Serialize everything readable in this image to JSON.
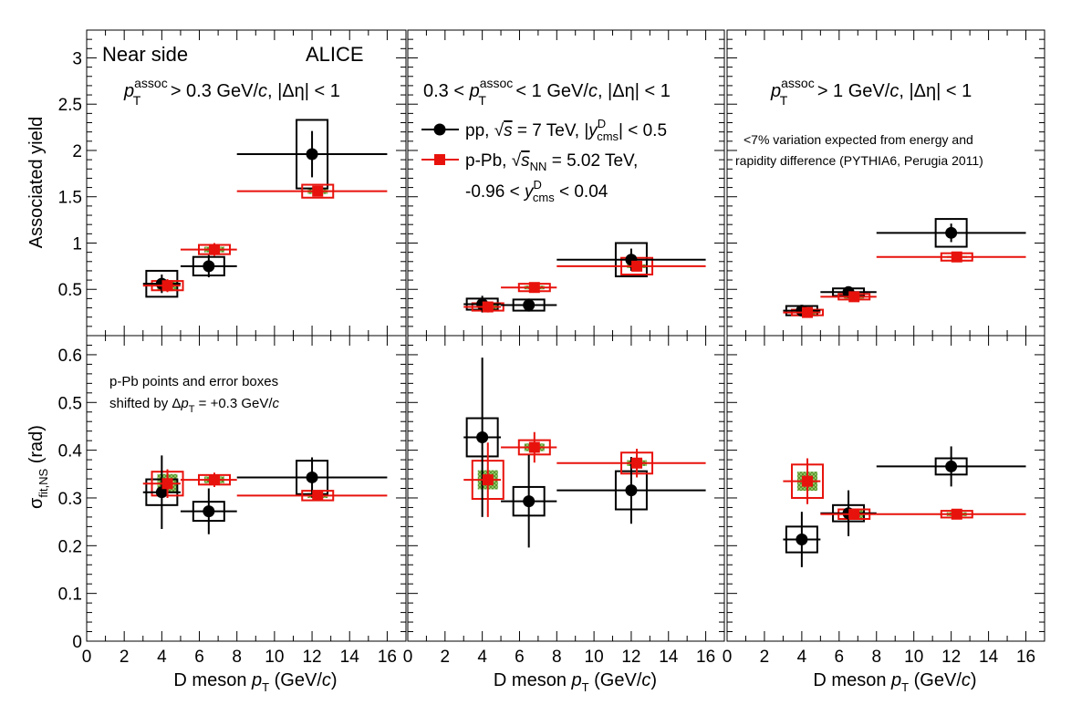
{
  "colors": {
    "pp": "#000000",
    "ppb": "#e8120c",
    "ppb_fill": "#e8120c",
    "band": "#5a9e2a",
    "frame": "#000000"
  },
  "labels": {
    "near_side": "Near side",
    "alice": "ALICE",
    "top_ylabel": "Associated yield",
    "bottom_ylabel_main": "σ",
    "bottom_ylabel_sub": "fit,NS",
    "bottom_ylabel_unit": " (rad)",
    "xlabel_pre": "D meson ",
    "xlabel_p": "p",
    "xlabel_sub": "T",
    "xlabel_post": " (GeV/",
    "xlabel_c": "c",
    "xlabel_close": ")",
    "ptassoc": [
      {
        "pre": "",
        "post": " > 0.3 GeV/",
        "tail": ", |Δη| < 1"
      },
      {
        "pre": "0.3 < ",
        "post": " < 1 GeV/",
        "tail": ", |Δη| < 1"
      },
      {
        "pre": "",
        "post": " > 1 GeV/",
        "tail": ", |Δη| < 1"
      }
    ],
    "assoc_sup": "assoc",
    "legend_pp": {
      "a": "pp, ",
      "sqrt": "s",
      "b": " = 7 TeV, |",
      "y": "y",
      "sup": "D",
      "sub": "cms",
      "c": "| < 0.5"
    },
    "legend_ppb": {
      "a": "p-Pb, ",
      "sqrt": "s",
      "sqrt_sub": "NN",
      "b": " = 5.02 TeV,"
    },
    "legend_ppb2": {
      "a": "-0.96 < ",
      "y": "y",
      "sup": "D",
      "sub": "cms",
      "b": " < 0.04"
    },
    "variation_1": "<7% variation expected from energy and",
    "variation_2": "rapidity difference (PYTHIA6, Perugia 2011)",
    "shift_1": "p-Pb points and error boxes",
    "shift_2_pre": "shifted by Δ",
    "shift_2_p": "p",
    "shift_2_sub": "T",
    "shift_2_post": " = +0.3 GeV/",
    "shift_2_c": "c"
  },
  "chart_data": [
    {
      "type": "scatter",
      "row": "top",
      "panel": 1,
      "xlim": [
        0,
        17
      ],
      "ylim": [
        0,
        3.3
      ],
      "y_ticks": [
        "0",
        "0.5",
        "1",
        "1.5",
        "2",
        "2.5",
        "3"
      ],
      "x_ticks": [
        "0",
        "2",
        "4",
        "6",
        "8",
        "10",
        "12",
        "14",
        "16"
      ],
      "series": [
        {
          "name": "pp",
          "points": [
            {
              "x": 4,
              "xlo": 3,
              "xhi": 5,
              "y": 0.56,
              "stat": 0.1,
              "syst": 0.14,
              "band": 0
            },
            {
              "x": 6.5,
              "xlo": 5,
              "xhi": 8,
              "y": 0.75,
              "stat": 0.12,
              "syst": 0.1,
              "band": 0
            },
            {
              "x": 12,
              "xlo": 8,
              "xhi": 16,
              "y": 1.96,
              "stat": 0.25,
              "syst": 0.37,
              "band": 0
            }
          ]
        },
        {
          "name": "p-Pb",
          "points": [
            {
              "x": 4.3,
              "xlo": 3,
              "xhi": 5,
              "y": 0.54,
              "stat": 0.07,
              "syst": 0.05,
              "band": 0.05
            },
            {
              "x": 6.8,
              "xlo": 5,
              "xhi": 8,
              "y": 0.93,
              "stat": 0.07,
              "syst": 0.05,
              "band": 0.03
            },
            {
              "x": 12.3,
              "xlo": 8,
              "xhi": 16,
              "y": 1.56,
              "stat": 0.04,
              "syst": 0.07,
              "band": 0.03
            }
          ]
        }
      ]
    },
    {
      "type": "scatter",
      "row": "top",
      "panel": 2,
      "xlim": [
        0,
        17
      ],
      "ylim": [
        0,
        3.3
      ],
      "x_ticks": [
        "0",
        "2",
        "4",
        "6",
        "8",
        "10",
        "12",
        "14",
        "16"
      ],
      "series": [
        {
          "name": "pp",
          "points": [
            {
              "x": 4,
              "xlo": 3,
              "xhi": 5,
              "y": 0.34,
              "stat": 0.09,
              "syst": 0.06,
              "band": 0
            },
            {
              "x": 6.5,
              "xlo": 5,
              "xhi": 8,
              "y": 0.33,
              "stat": 0.07,
              "syst": 0.06,
              "band": 0
            },
            {
              "x": 12,
              "xlo": 8,
              "xhi": 16,
              "y": 0.82,
              "stat": 0.12,
              "syst": 0.18,
              "band": 0
            }
          ]
        },
        {
          "name": "p-Pb",
          "points": [
            {
              "x": 4.3,
              "xlo": 3,
              "xhi": 5,
              "y": 0.31,
              "stat": 0.06,
              "syst": 0.04,
              "band": 0.03
            },
            {
              "x": 6.8,
              "xlo": 5,
              "xhi": 8,
              "y": 0.52,
              "stat": 0.05,
              "syst": 0.04,
              "band": 0.02
            },
            {
              "x": 12.3,
              "xlo": 8,
              "xhi": 16,
              "y": 0.75,
              "stat": 0.05,
              "syst": 0.09,
              "band": 0.02
            }
          ]
        }
      ]
    },
    {
      "type": "scatter",
      "row": "top",
      "panel": 3,
      "xlim": [
        0,
        17
      ],
      "ylim": [
        0,
        3.3
      ],
      "x_ticks": [
        "0",
        "2",
        "4",
        "6",
        "8",
        "10",
        "12",
        "14",
        "16"
      ],
      "series": [
        {
          "name": "pp",
          "points": [
            {
              "x": 4,
              "xlo": 3,
              "xhi": 5,
              "y": 0.27,
              "stat": 0.05,
              "syst": 0.05,
              "band": 0
            },
            {
              "x": 6.5,
              "xlo": 5,
              "xhi": 8,
              "y": 0.47,
              "stat": 0.05,
              "syst": 0.04,
              "band": 0
            },
            {
              "x": 12,
              "xlo": 8,
              "xhi": 16,
              "y": 1.11,
              "stat": 0.1,
              "syst": 0.15,
              "band": 0
            }
          ]
        },
        {
          "name": "p-Pb",
          "points": [
            {
              "x": 4.3,
              "xlo": 3,
              "xhi": 5,
              "y": 0.25,
              "stat": 0.03,
              "syst": 0.03,
              "band": 0.02
            },
            {
              "x": 6.8,
              "xlo": 5,
              "xhi": 8,
              "y": 0.42,
              "stat": 0.03,
              "syst": 0.03,
              "band": 0.02
            },
            {
              "x": 12.3,
              "xlo": 8,
              "xhi": 16,
              "y": 0.85,
              "stat": 0.02,
              "syst": 0.04,
              "band": 0.01
            }
          ]
        }
      ]
    },
    {
      "type": "scatter",
      "row": "bottom",
      "panel": 1,
      "xlim": [
        0,
        17
      ],
      "ylim": [
        0,
        0.64
      ],
      "y_ticks": [
        "0",
        "0.1",
        "0.2",
        "0.3",
        "0.4",
        "0.5",
        "0.6"
      ],
      "x_ticks": [
        "0",
        "2",
        "4",
        "6",
        "8",
        "10",
        "12",
        "14",
        "16"
      ],
      "series": [
        {
          "name": "pp",
          "points": [
            {
              "x": 4,
              "xlo": 3,
              "xhi": 5,
              "y": 0.312,
              "stat": 0.077,
              "syst": 0.027,
              "band": 0
            },
            {
              "x": 6.5,
              "xlo": 5,
              "xhi": 8,
              "y": 0.272,
              "stat": 0.048,
              "syst": 0.02,
              "band": 0
            },
            {
              "x": 12,
              "xlo": 8,
              "xhi": 16,
              "y": 0.343,
              "stat": 0.042,
              "syst": 0.035,
              "band": 0
            }
          ]
        },
        {
          "name": "p-Pb",
          "points": [
            {
              "x": 4.3,
              "xlo": 3,
              "xhi": 5,
              "y": 0.33,
              "stat": 0.03,
              "syst": 0.025,
              "band": 0.02
            },
            {
              "x": 6.8,
              "xlo": 5,
              "xhi": 8,
              "y": 0.338,
              "stat": 0.015,
              "syst": 0.01,
              "band": 0.007
            },
            {
              "x": 12.3,
              "xlo": 8,
              "xhi": 16,
              "y": 0.305,
              "stat": 0.007,
              "syst": 0.01,
              "band": 0.005
            }
          ]
        }
      ]
    },
    {
      "type": "scatter",
      "row": "bottom",
      "panel": 2,
      "xlim": [
        0,
        17
      ],
      "ylim": [
        0,
        0.64
      ],
      "x_ticks": [
        "0",
        "2",
        "4",
        "6",
        "8",
        "10",
        "12",
        "14",
        "16"
      ],
      "series": [
        {
          "name": "pp",
          "points": [
            {
              "x": 4,
              "xlo": 3,
              "xhi": 5,
              "y": 0.427,
              "stat": 0.167,
              "syst": 0.04,
              "band": 0
            },
            {
              "x": 6.5,
              "xlo": 5,
              "xhi": 8,
              "y": 0.293,
              "stat": 0.097,
              "syst": 0.03,
              "band": 0
            },
            {
              "x": 12,
              "xlo": 8,
              "xhi": 16,
              "y": 0.316,
              "stat": 0.07,
              "syst": 0.04,
              "band": 0
            }
          ]
        },
        {
          "name": "p-Pb",
          "points": [
            {
              "x": 4.3,
              "xlo": 3,
              "xhi": 5,
              "y": 0.338,
              "stat": 0.078,
              "syst": 0.04,
              "band": 0.02
            },
            {
              "x": 6.8,
              "xlo": 5,
              "xhi": 8,
              "y": 0.406,
              "stat": 0.032,
              "syst": 0.015,
              "band": 0.008
            },
            {
              "x": 12.3,
              "xlo": 8,
              "xhi": 16,
              "y": 0.373,
              "stat": 0.03,
              "syst": 0.022,
              "band": 0.006
            }
          ]
        }
      ]
    },
    {
      "type": "scatter",
      "row": "bottom",
      "panel": 3,
      "xlim": [
        0,
        17
      ],
      "ylim": [
        0,
        0.64
      ],
      "x_ticks": [
        "0",
        "2",
        "4",
        "6",
        "8",
        "10",
        "12",
        "14",
        "16"
      ],
      "series": [
        {
          "name": "pp",
          "points": [
            {
              "x": 4,
              "xlo": 3,
              "xhi": 5,
              "y": 0.213,
              "stat": 0.058,
              "syst": 0.027,
              "band": 0
            },
            {
              "x": 6.5,
              "xlo": 5,
              "xhi": 8,
              "y": 0.268,
              "stat": 0.048,
              "syst": 0.017,
              "band": 0
            },
            {
              "x": 12,
              "xlo": 8,
              "xhi": 16,
              "y": 0.366,
              "stat": 0.042,
              "syst": 0.017,
              "band": 0
            }
          ]
        },
        {
          "name": "p-Pb",
          "points": [
            {
              "x": 4.3,
              "xlo": 3,
              "xhi": 5,
              "y": 0.335,
              "stat": 0.048,
              "syst": 0.035,
              "band": 0.02
            },
            {
              "x": 6.8,
              "xlo": 5,
              "xhi": 8,
              "y": 0.266,
              "stat": 0.01,
              "syst": 0.01,
              "band": 0.008
            },
            {
              "x": 12.3,
              "xlo": 8,
              "xhi": 16,
              "y": 0.266,
              "stat": 0.007,
              "syst": 0.007,
              "band": 0.004
            }
          ]
        }
      ]
    }
  ]
}
